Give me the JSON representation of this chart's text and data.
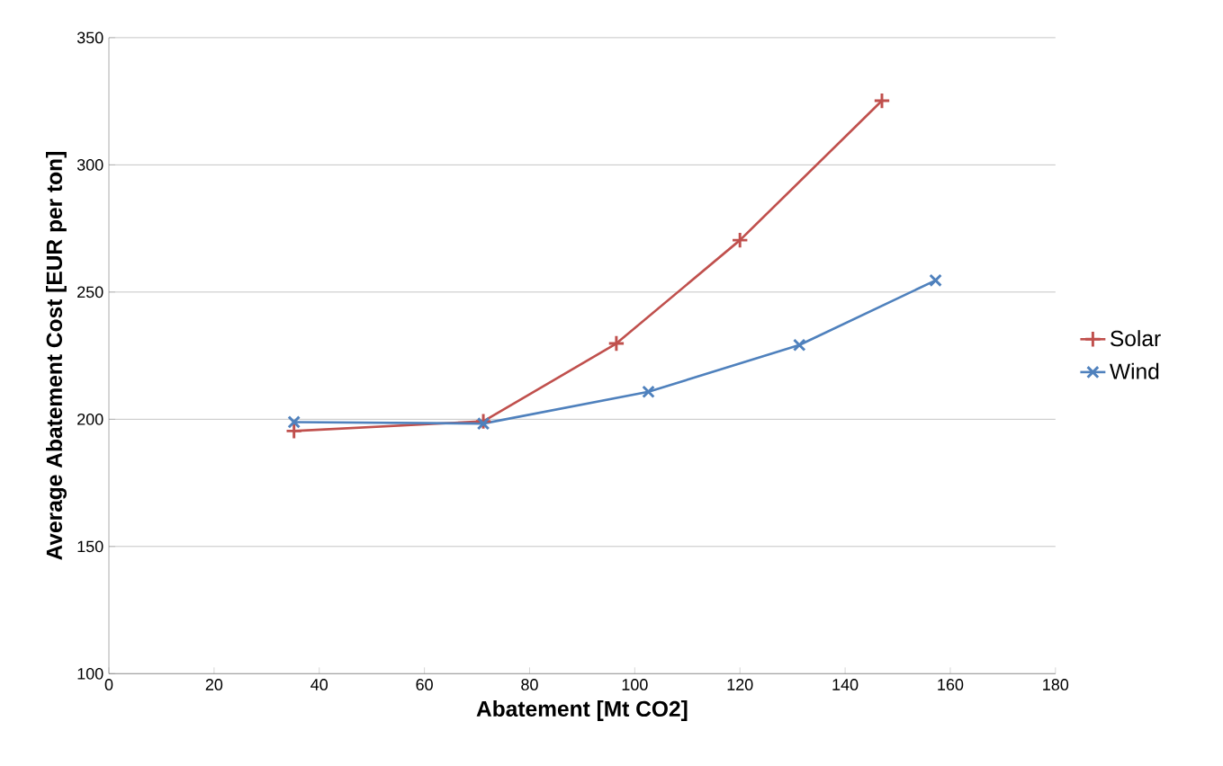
{
  "chart_data": {
    "type": "line",
    "xlabel": "Abatement [Mt CO2]",
    "ylabel": "Average Abatement Cost [EUR per ton]",
    "xlim": [
      0,
      180
    ],
    "xticks": [
      0,
      20,
      40,
      60,
      80,
      100,
      120,
      140,
      160,
      180
    ],
    "ylim": [
      100,
      350
    ],
    "yticks": [
      100,
      150,
      200,
      250,
      300,
      350
    ],
    "grid": "y",
    "legend": "right",
    "line_style": "solid",
    "series": [
      {
        "name": "Solar",
        "color": "#c0504d",
        "marker": "plus",
        "x": [
          35.2,
          71.2,
          96.5,
          120,
          147
        ],
        "values": [
          195.4,
          199.2,
          229.8,
          270.4,
          325.2
        ]
      },
      {
        "name": "Wind",
        "color": "#4f81bd",
        "marker": "cross",
        "x": [
          35.2,
          71.2,
          102.6,
          131.3,
          157.2
        ],
        "values": [
          198.9,
          198.3,
          210.8,
          229.2,
          254.6
        ]
      }
    ]
  }
}
